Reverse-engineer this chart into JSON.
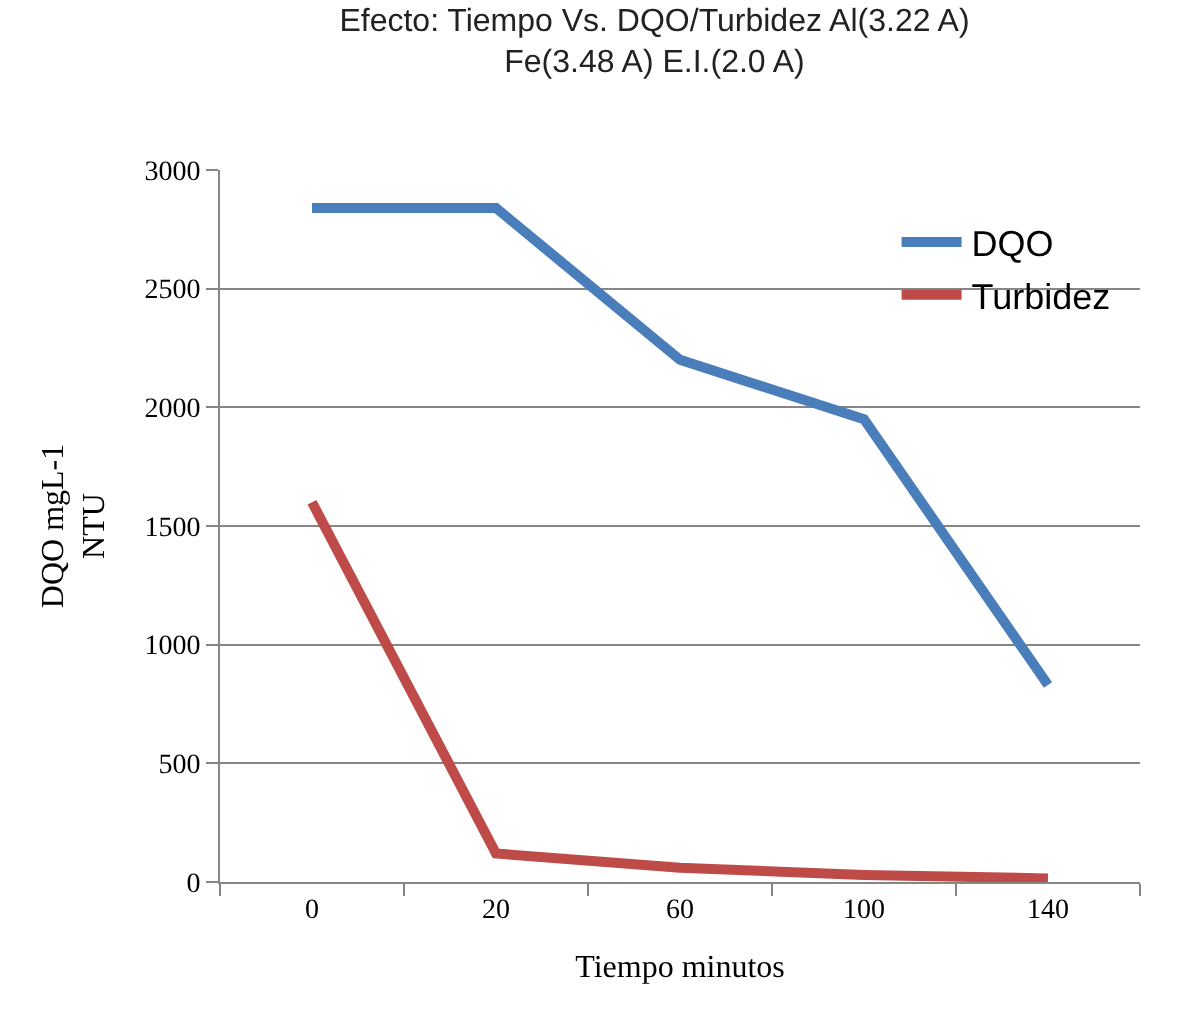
{
  "chart_data": {
    "type": "line",
    "title": "Efecto: Tiempo Vs. DQO/Turbidez Al(3.22 A)\nFe(3.48 A) E.I.(2.0 A)",
    "xlabel": "Tiempo minutos",
    "ylabel": "DQO mgL-1\nNTU",
    "categories": [
      "0",
      "20",
      "60",
      "100",
      "140"
    ],
    "series": [
      {
        "name": "DQO",
        "color": "#4a7ebb",
        "values": [
          2840,
          2840,
          2200,
          1950,
          830
        ]
      },
      {
        "name": "Turbidez",
        "color": "#be4b48",
        "values": [
          1600,
          120,
          60,
          30,
          15
        ]
      }
    ],
    "ylim": [
      0,
      3000
    ],
    "yticks": [
      0,
      500,
      1000,
      1500,
      2000,
      2500,
      3000
    ],
    "grid": "y",
    "legend": "top right",
    "marker": "none",
    "line_style": "solid"
  }
}
